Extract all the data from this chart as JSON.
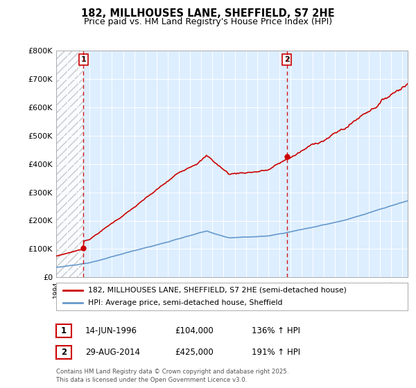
{
  "title1": "182, MILLHOUSES LANE, SHEFFIELD, S7 2HE",
  "title2": "Price paid vs. HM Land Registry's House Price Index (HPI)",
  "legend_line1": "182, MILLHOUSES LANE, SHEFFIELD, S7 2HE (semi-detached house)",
  "legend_line2": "HPI: Average price, semi-detached house, Sheffield",
  "footnote": "Contains HM Land Registry data © Crown copyright and database right 2025.\nThis data is licensed under the Open Government Licence v3.0.",
  "sale1_label": "1",
  "sale1_date": "14-JUN-1996",
  "sale1_price": "£104,000",
  "sale1_hpi": "136% ↑ HPI",
  "sale2_label": "2",
  "sale2_date": "29-AUG-2014",
  "sale2_price": "£425,000",
  "sale2_hpi": "191% ↑ HPI",
  "sale1_x": 1996.45,
  "sale1_y": 104000,
  "sale2_x": 2014.66,
  "sale2_y": 425000,
  "red_line_color": "#cc0000",
  "blue_line_color": "#6699cc",
  "marker_color": "#cc0000",
  "vline_color": "#cc0000",
  "bg_color": "#ddeeff",
  "ylim_max": 800000,
  "xlim_min": 1994,
  "xlim_max": 2025.5,
  "yticks": [
    0,
    100000,
    200000,
    300000,
    400000,
    500000,
    600000,
    700000,
    800000
  ],
  "ylabels": [
    "£0",
    "£100K",
    "£200K",
    "£300K",
    "£400K",
    "£500K",
    "£600K",
    "£700K",
    "£800K"
  ]
}
